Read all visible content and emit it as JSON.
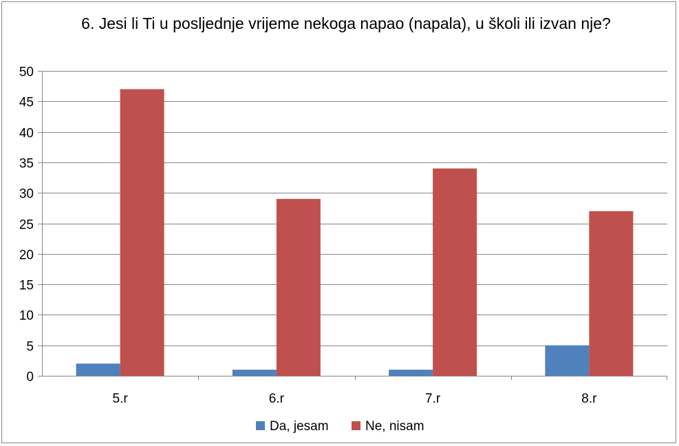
{
  "chart_data": {
    "type": "bar",
    "title": "6. Jesi li Ti u posljednje vrijeme nekoga napao (napala), u školi ili izvan nje?",
    "categories": [
      "5.r",
      "6.r",
      "7.r",
      "8.r"
    ],
    "series": [
      {
        "name": "Da, jesam",
        "values": [
          2,
          1,
          1,
          5
        ],
        "color": "#4F81BD"
      },
      {
        "name": "Ne, nisam",
        "values": [
          47,
          29,
          34,
          27
        ],
        "color": "#C0504D"
      }
    ],
    "xlabel": "",
    "ylabel": "",
    "ylim": [
      0,
      50
    ],
    "yticks": [
      0,
      5,
      10,
      15,
      20,
      25,
      30,
      35,
      40,
      45,
      50
    ],
    "grid": true,
    "legend_position": "bottom"
  }
}
